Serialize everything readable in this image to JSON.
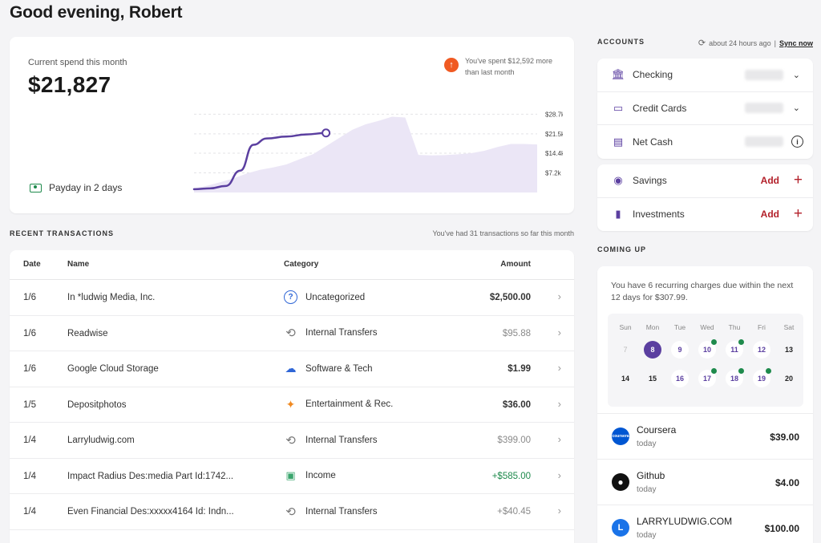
{
  "greeting": "Good evening, Robert",
  "spend": {
    "label": "Current spend this month",
    "amount": "$21,827",
    "compare_text": "You've spent $12,592 more than last month",
    "payday": "Payday in 2 days"
  },
  "chart_data": {
    "type": "area",
    "ylim": [
      0,
      30000
    ],
    "yticks": [
      "$28.7k",
      "$21.5k",
      "$14.4k",
      "$7.2k"
    ],
    "ytick_values": [
      28700,
      21500,
      14400,
      7200
    ],
    "this_month": [
      1200,
      1500,
      2400,
      8000,
      17500,
      19800,
      20500,
      21300,
      21827
    ],
    "this_month_x": [
      0,
      1.2,
      2.4,
      3.5,
      4.5,
      5.5,
      7,
      8.5,
      10
    ],
    "last_month": [
      1500,
      2500,
      3800,
      5200,
      7000,
      8300,
      9200,
      10300,
      12200,
      14000,
      17000,
      20000,
      23000,
      25000,
      26300,
      27800,
      27500,
      13800,
      13600,
      13700,
      14000,
      14400,
      15300,
      16700,
      17800,
      17800,
      17600
    ],
    "last_month_x_max": 26
  },
  "transactions": {
    "title": "RECENT TRANSACTIONS",
    "count_text": "You've had 31 transactions so far this month",
    "headers": {
      "date": "Date",
      "name": "Name",
      "category": "Category",
      "amount": "Amount"
    },
    "rows": [
      {
        "date": "1/6",
        "name": "In *ludwig Media, Inc.",
        "category": "Uncategorized",
        "icon": "question-icon",
        "amount": "$2,500.00",
        "style": "bold"
      },
      {
        "date": "1/6",
        "name": "Readwise",
        "category": "Internal Transfers",
        "icon": "transfer-icon",
        "amount": "$95.88",
        "style": "muted"
      },
      {
        "date": "1/6",
        "name": "Google Cloud Storage",
        "category": "Software & Tech",
        "icon": "cloud-icon",
        "amount": "$1.99",
        "style": "bold"
      },
      {
        "date": "1/5",
        "name": "Depositphotos",
        "category": "Entertainment & Rec.",
        "icon": "ticket-icon",
        "amount": "$36.00",
        "style": "bold"
      },
      {
        "date": "1/4",
        "name": "Larryludwig.com",
        "category": "Internal Transfers",
        "icon": "transfer-icon",
        "amount": "$399.00",
        "style": "muted"
      },
      {
        "date": "1/4",
        "name": "Impact Radius Des:media Part Id:1742...",
        "category": "Income",
        "icon": "income-icon",
        "amount": "+$585.00",
        "style": "green"
      },
      {
        "date": "1/4",
        "name": "Even Financial Des:xxxxx4164 Id: Indn...",
        "category": "Internal Transfers",
        "icon": "transfer-icon",
        "amount": "+$40.45",
        "style": "muted"
      }
    ]
  },
  "accounts": {
    "title": "ACCOUNTS",
    "sync_status": "about 24 hours ago",
    "separator": "|",
    "sync_link": "Sync now",
    "main": [
      {
        "label": "Checking",
        "icon": "bank-icon",
        "action": "chevron-down-icon"
      },
      {
        "label": "Credit Cards",
        "icon": "credit-card-icon",
        "action": "chevron-down-icon"
      },
      {
        "label": "Net Cash",
        "icon": "cash-icon",
        "action": "info-icon"
      }
    ],
    "extra": [
      {
        "label": "Savings",
        "icon": "piggy-bank-icon",
        "add": "Add"
      },
      {
        "label": "Investments",
        "icon": "bar-chart-icon",
        "add": "Add"
      }
    ]
  },
  "coming_up": {
    "title": "COMING UP",
    "summary": "You have 6 recurring charges due within the next 12 days for $307.99.",
    "day_names": [
      "Sun",
      "Mon",
      "Tue",
      "Wed",
      "Thu",
      "Fri",
      "Sat"
    ],
    "week1": [
      {
        "d": "7",
        "state": "past"
      },
      {
        "d": "8",
        "state": "today"
      },
      {
        "d": "9",
        "state": "charge"
      },
      {
        "d": "10",
        "state": "charge",
        "dot": true
      },
      {
        "d": "11",
        "state": "charge",
        "dot": true
      },
      {
        "d": "12",
        "state": "charge"
      },
      {
        "d": "13",
        "state": "normal"
      }
    ],
    "week2": [
      {
        "d": "14",
        "state": "normal"
      },
      {
        "d": "15",
        "state": "normal"
      },
      {
        "d": "16",
        "state": "charge"
      },
      {
        "d": "17",
        "state": "charge",
        "dot": true
      },
      {
        "d": "18",
        "state": "charge",
        "dot": true
      },
      {
        "d": "19",
        "state": "charge",
        "dot": true
      },
      {
        "d": "20",
        "state": "normal"
      }
    ],
    "bills": [
      {
        "name": "Coursera",
        "when": "today",
        "amount": "$39.00",
        "logo_text": "coursera",
        "color": "#0056d2"
      },
      {
        "name": "Github",
        "when": "today",
        "amount": "$4.00",
        "logo_text": "",
        "color": "#111111"
      },
      {
        "name": "LARRYLUDWIG.COM",
        "when": "today",
        "amount": "$100.00",
        "logo_text": "L",
        "color": "#1a73e8"
      }
    ]
  },
  "colors": {
    "accent": "#5b3fa0",
    "add": "#b3202a",
    "positive": "#1e8a4c",
    "alert": "#f05a22"
  }
}
